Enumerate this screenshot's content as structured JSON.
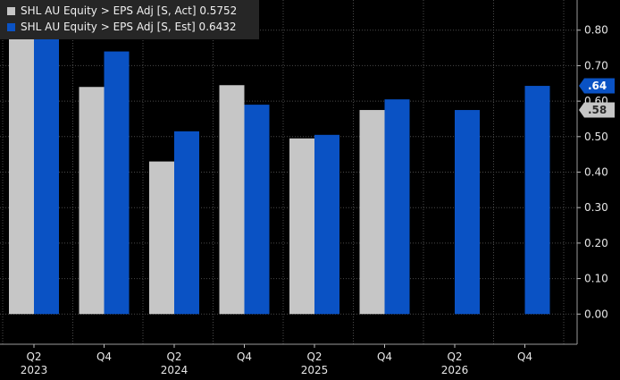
{
  "chart_data": {
    "type": "bar",
    "categories": [
      "Q2 2023",
      "Q4 2023",
      "Q2 2024",
      "Q4 2024",
      "Q2 2025",
      "Q4 2025",
      "Q2 2026",
      "Q4 2026"
    ],
    "x_tick_labels": [
      "Q2",
      "Q4",
      "Q2",
      "Q4",
      "Q2",
      "Q4",
      "Q2",
      "Q4"
    ],
    "x_year_labels": [
      {
        "label": "2023",
        "category_index": 0
      },
      {
        "label": "2024",
        "category_index": 2
      },
      {
        "label": "2025",
        "category_index": 4
      },
      {
        "label": "2026",
        "category_index": 6
      }
    ],
    "series": [
      {
        "name": "SHL AU Equity > EPS Adj [S, Act] 0.5752",
        "color": "#c6c6c6",
        "values": [
          0.88,
          0.64,
          0.43,
          0.645,
          0.495,
          0.575,
          null,
          null
        ]
      },
      {
        "name": "SHL AU Equity > EPS Adj [S, Est] 0.6432",
        "color": "#0a52c4",
        "values": [
          0.85,
          0.74,
          0.515,
          0.59,
          0.505,
          0.605,
          0.575,
          0.643
        ]
      }
    ],
    "y_ticks": [
      "0.00",
      "0.10",
      "0.20",
      "0.30",
      "0.40",
      "0.50",
      "0.60",
      "0.70",
      "0.80"
    ],
    "ylim": [
      -0.085,
      0.885
    ],
    "last_value_tags": [
      {
        "label": ".64",
        "value": 0.643,
        "bg": "#0a52c4",
        "text_color": "#ffffff"
      },
      {
        "label": ".58",
        "value": 0.575,
        "bg": "#c6c6c6",
        "text_color": "#2a2a2a"
      }
    ],
    "legend_position": "top-left",
    "grid": true
  }
}
